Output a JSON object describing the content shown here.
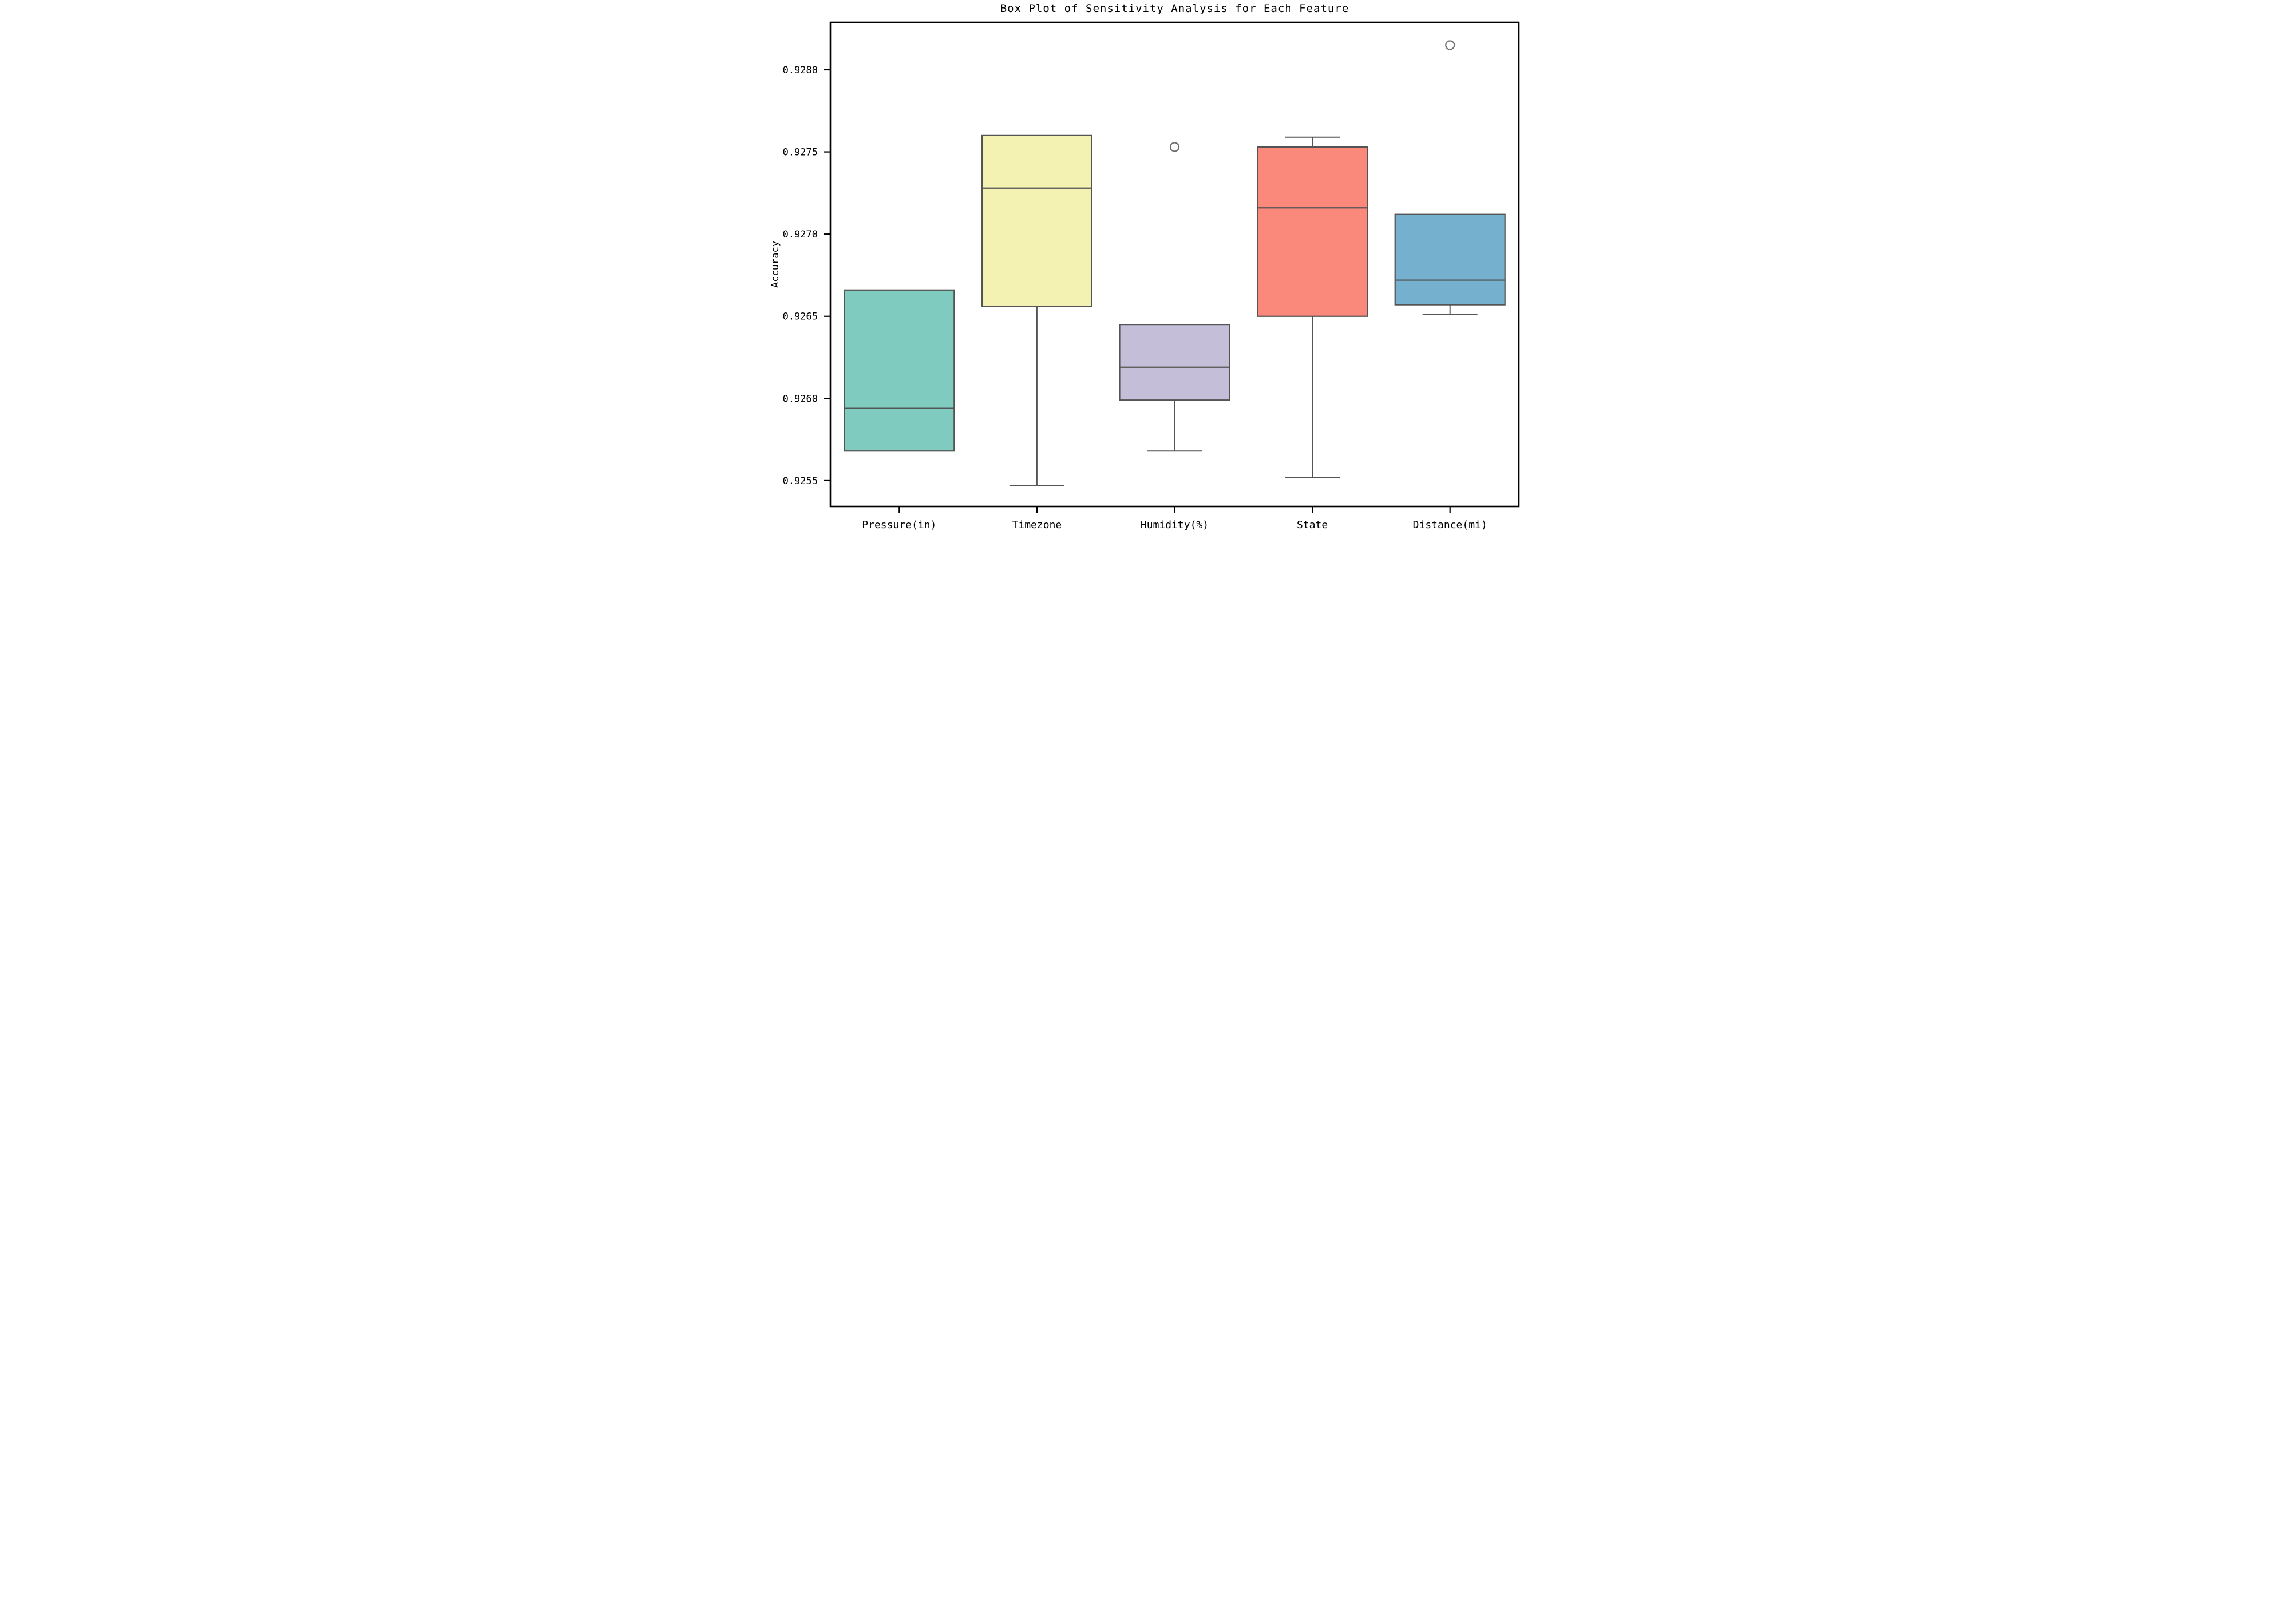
{
  "title": "Box Plot of Sensitivity Analysis for Each Feature",
  "ylabel": "Accuracy",
  "chart_data": {
    "type": "box",
    "title": "Box Plot of Sensitivity Analysis for Each Feature",
    "xlabel": "",
    "ylabel": "Accuracy",
    "categories": [
      "Pressure(in)",
      "Timezone",
      "Humidity(%)",
      "State",
      "Distance(mi)"
    ],
    "ylim": [
      0.925343,
      0.928289
    ],
    "yticks": [
      {
        "value": 0.9255,
        "label": "0.9255"
      },
      {
        "value": 0.926,
        "label": "0.9260"
      },
      {
        "value": 0.9265,
        "label": "0.9265"
      },
      {
        "value": 0.927,
        "label": "0.9270"
      },
      {
        "value": 0.9275,
        "label": "0.9275"
      },
      {
        "value": 0.928,
        "label": "0.9280"
      }
    ],
    "grid": false,
    "legend": "none",
    "series": [
      {
        "name": "Pressure(in)",
        "fill": "#7fcbc0",
        "whislo": 0.92568,
        "q1": 0.92568,
        "med": 0.92594,
        "q3": 0.92666,
        "whishi": 0.92666,
        "fliers": []
      },
      {
        "name": "Timezone",
        "fill": "#f4f2b3",
        "whislo": 0.92547,
        "q1": 0.92656,
        "med": 0.92728,
        "q3": 0.9276,
        "whishi": 0.9276,
        "fliers": []
      },
      {
        "name": "Humidity(%)",
        "fill": "#c4bed8",
        "whislo": 0.92568,
        "q1": 0.92599,
        "med": 0.92619,
        "q3": 0.92645,
        "whishi": 0.92645,
        "fliers": [
          0.92753
        ]
      },
      {
        "name": "State",
        "fill": "#fb897b",
        "whislo": 0.92552,
        "q1": 0.9265,
        "med": 0.92716,
        "q3": 0.92753,
        "whishi": 0.92759,
        "fliers": []
      },
      {
        "name": "Distance(mi)",
        "fill": "#76b0cf",
        "whislo": 0.92651,
        "q1": 0.92657,
        "med": 0.92672,
        "q3": 0.92712,
        "whishi": 0.92712,
        "fliers": [
          0.92815
        ]
      }
    ],
    "colors": {
      "box_edge": "#545454",
      "median_line": "#545454",
      "whisker": "#545454",
      "outlier_edge": "#6e6e6e",
      "axis_spine": "#000000",
      "background": "#ffffff"
    }
  }
}
